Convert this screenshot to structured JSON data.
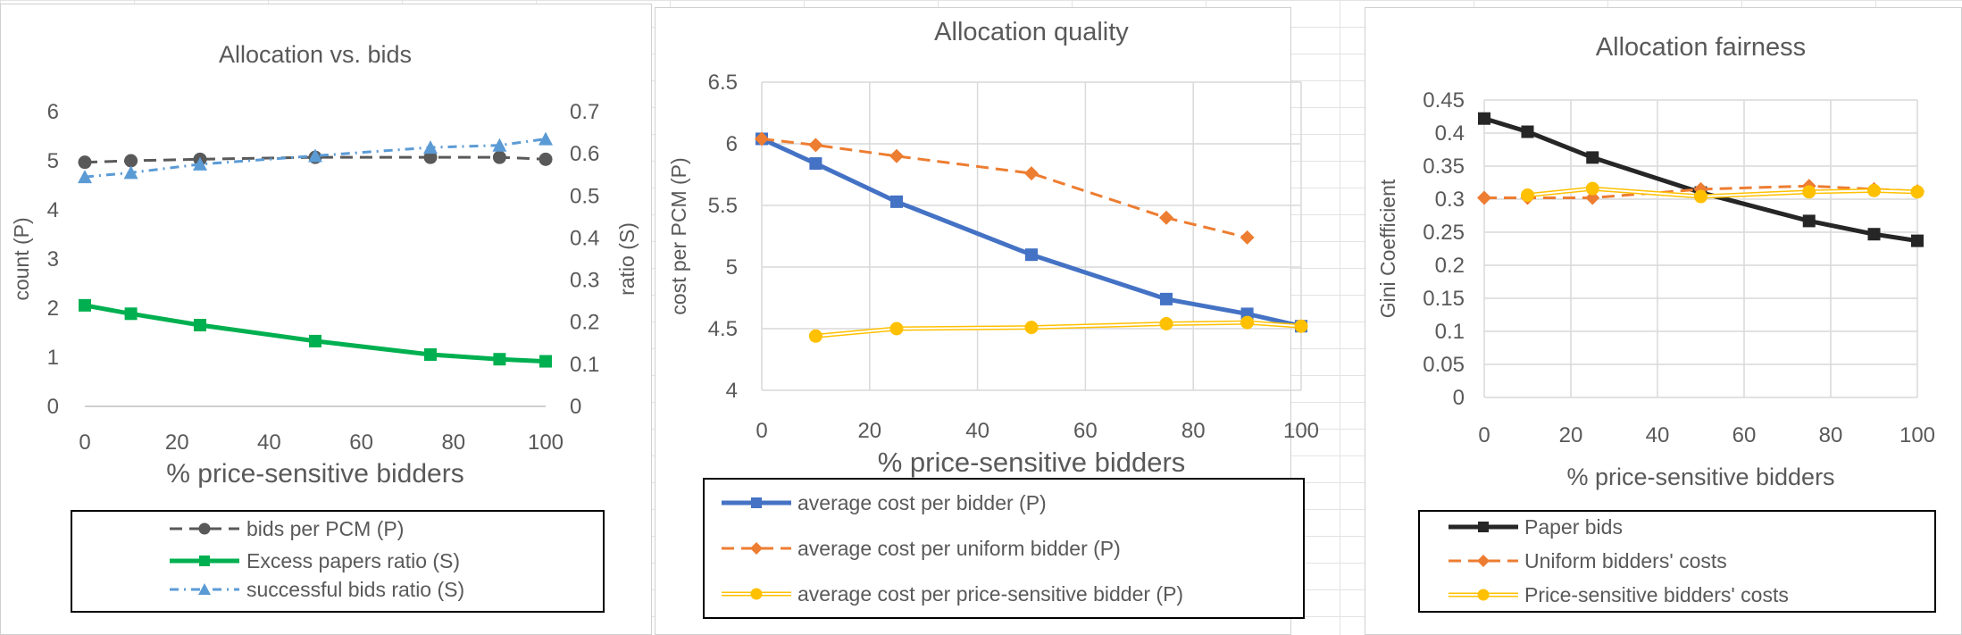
{
  "chart_data": [
    {
      "type": "line",
      "title": "Allocation vs. bids",
      "xlabel": "% price-sensitive bidders",
      "ylabel": "count (P)",
      "y2label": "ratio (S)",
      "xlim": [
        0,
        100
      ],
      "ylim": [
        0,
        6
      ],
      "y2lim": [
        0,
        0.7
      ],
      "xticks": [
        "0",
        "20",
        "40",
        "60",
        "80",
        "100"
      ],
      "yticks": [
        "0",
        "1",
        "2",
        "3",
        "4",
        "5",
        "6"
      ],
      "y2ticks": [
        "0",
        "0.1",
        "0.2",
        "0.3",
        "0.4",
        "0.5",
        "0.6",
        "0.7"
      ],
      "grid": false,
      "legend": "bottom",
      "series": [
        {
          "name": "bids per PCM (P)",
          "axis": "primary",
          "color": "#595959",
          "marker": "circle",
          "dash": "dashed",
          "x": [
            0,
            10,
            25,
            50,
            75,
            90,
            100
          ],
          "y": [
            4.97,
            5.0,
            5.03,
            5.07,
            5.07,
            5.07,
            5.03
          ]
        },
        {
          "name": "Excess papers ratio (S)",
          "axis": "secondary",
          "color": "#00b050",
          "marker": "square",
          "dash": "solid",
          "x": [
            0,
            10,
            25,
            50,
            75,
            90,
            100
          ],
          "y": [
            0.24,
            0.22,
            0.193,
            0.155,
            0.123,
            0.112,
            0.107
          ]
        },
        {
          "name": "successful bids ratio (S)",
          "axis": "secondary",
          "color": "#5b9bd5",
          "marker": "triangle",
          "dash": "dashdot",
          "x": [
            0,
            10,
            25,
            50,
            75,
            90,
            100
          ],
          "y": [
            0.545,
            0.555,
            0.575,
            0.595,
            0.615,
            0.62,
            0.635
          ]
        }
      ]
    },
    {
      "type": "line",
      "title": "Allocation quality",
      "xlabel": "% price-sensitive bidders",
      "ylabel": "cost per PCM (P)",
      "xlim": [
        0,
        100
      ],
      "ylim": [
        4,
        6.5
      ],
      "xticks": [
        "0",
        "20",
        "40",
        "60",
        "80",
        "100"
      ],
      "yticks": [
        "4",
        "4.5",
        "5",
        "5.5",
        "6",
        "6.5"
      ],
      "grid": true,
      "legend": "bottom",
      "series": [
        {
          "name": "average cost per bidder (P)",
          "color": "#4472c4",
          "marker": "square",
          "dash": "solid",
          "x": [
            0,
            10,
            25,
            50,
            75,
            90,
            100
          ],
          "y": [
            6.04,
            5.84,
            5.53,
            5.1,
            4.74,
            4.62,
            4.52
          ]
        },
        {
          "name": "average cost per uniform bidder (P)",
          "color": "#ed7d31",
          "marker": "diamond",
          "dash": "dashed",
          "x": [
            0,
            10,
            25,
            50,
            75,
            90
          ],
          "y": [
            6.04,
            5.99,
            5.9,
            5.76,
            5.4,
            5.24
          ]
        },
        {
          "name": "average cost per price-sensitive bidder (P)",
          "color": "#ffc000",
          "marker": "circle",
          "dash": "double",
          "x": [
            10,
            25,
            50,
            75,
            90,
            100
          ],
          "y": [
            4.44,
            4.5,
            4.51,
            4.54,
            4.55,
            4.52
          ]
        }
      ]
    },
    {
      "type": "line",
      "title": "Allocation fairness",
      "xlabel": "% price-sensitive bidders",
      "ylabel": "Gini Coefficient",
      "xlim": [
        0,
        100
      ],
      "ylim": [
        0,
        0.45
      ],
      "xticks": [
        "0",
        "20",
        "40",
        "60",
        "80",
        "100"
      ],
      "yticks": [
        "0",
        "0.05",
        "0.1",
        "0.15",
        "0.2",
        "0.25",
        "0.3",
        "0.35",
        "0.4",
        "0.45"
      ],
      "grid": true,
      "legend": "bottom",
      "series": [
        {
          "name": "Paper bids",
          "color": "#262626",
          "marker": "square",
          "dash": "solid",
          "x": [
            0,
            10,
            25,
            50,
            75,
            90,
            100
          ],
          "y": [
            0.422,
            0.402,
            0.363,
            0.31,
            0.267,
            0.247,
            0.237
          ]
        },
        {
          "name": "Uniform bidders' costs",
          "color": "#ed7d31",
          "marker": "diamond",
          "dash": "dashed",
          "x": [
            0,
            10,
            25,
            50,
            75,
            90,
            100
          ],
          "y": [
            0.302,
            0.302,
            0.302,
            0.315,
            0.32,
            0.315,
            0.312
          ]
        },
        {
          "name": "Price-sensitive bidders' costs",
          "color": "#ffc000",
          "marker": "circle",
          "dash": "double",
          "x": [
            10,
            25,
            50,
            75,
            90,
            100
          ],
          "y": [
            0.306,
            0.316,
            0.304,
            0.311,
            0.313,
            0.311
          ]
        }
      ]
    }
  ]
}
